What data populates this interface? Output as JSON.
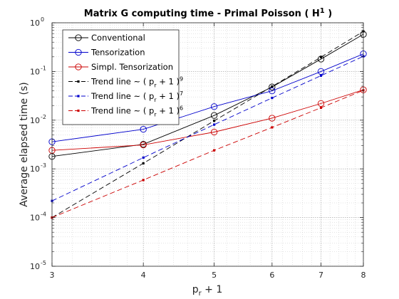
{
  "chart_data": {
    "type": "line",
    "title": "Matrix G computing time - Primal Poisson ( H",
    "title_sup": "1",
    "title_end": " )",
    "xlabel_main": "p",
    "xlabel_sub": "r",
    "xlabel_end": " + 1",
    "ylabel": "Average elapsed time (s)",
    "x_scale": "log",
    "y_scale": "log",
    "xlim": [
      3,
      8
    ],
    "ylim": [
      1e-05,
      1
    ],
    "x_ticks": [
      3,
      4,
      5,
      6,
      7,
      8
    ],
    "x_tick_labels": [
      "3",
      "4",
      "5",
      "6",
      "7",
      "8"
    ],
    "y_ticks": [
      1e-05,
      0.0001,
      0.001,
      0.01,
      0.1,
      1
    ],
    "y_tick_labels": [
      {
        "base": "10",
        "exp": "-5"
      },
      {
        "base": "10",
        "exp": "-4"
      },
      {
        "base": "10",
        "exp": "-3"
      },
      {
        "base": "10",
        "exp": "-2"
      },
      {
        "base": "10",
        "exp": "-1"
      },
      {
        "base": "10",
        "exp": "0"
      }
    ],
    "grid": true,
    "minor_grid": true,
    "legend_position": "top-left",
    "x": [
      3,
      4,
      5,
      6,
      7,
      8
    ],
    "series": [
      {
        "name": "Conventional",
        "style": "solid",
        "marker": "circle",
        "color": "#000000",
        "values": [
          0.0018,
          0.0032,
          0.0125,
          0.048,
          0.18,
          0.58
        ]
      },
      {
        "name": "Tensorization",
        "style": "solid",
        "marker": "circle",
        "color": "#0000cc",
        "values": [
          0.0036,
          0.0065,
          0.019,
          0.04,
          0.1,
          0.23
        ]
      },
      {
        "name": "Simpl. Tensorization",
        "style": "solid",
        "marker": "circle",
        "color": "#cc0000",
        "values": [
          0.0024,
          0.0031,
          0.0057,
          0.011,
          0.022,
          0.042
        ]
      },
      {
        "name": "Trend line ~ ( p",
        "name_sub": "r",
        "name_end": " + 1 )",
        "name_sup": "9",
        "style": "dashed",
        "marker": "dot",
        "color": "#000000",
        "values": [
          0.0001,
          0.0013,
          0.0097,
          0.049,
          0.197,
          0.666
        ]
      },
      {
        "name": "Trend line ~ ( p",
        "name_sub": "r",
        "name_end": " + 1 )",
        "name_sup": "7",
        "style": "dashed",
        "marker": "dot",
        "color": "#0000cc",
        "values": [
          0.00022,
          0.0017,
          0.0081,
          0.0286,
          0.082,
          0.205
        ]
      },
      {
        "name": "Trend line ~ ( p",
        "name_sub": "r",
        "name_end": " + 1 )",
        "name_sup": "6",
        "style": "dashed",
        "marker": "dot",
        "color": "#cc0000",
        "values": [
          0.0001,
          0.00059,
          0.0024,
          0.0071,
          0.018,
          0.041
        ]
      }
    ]
  }
}
